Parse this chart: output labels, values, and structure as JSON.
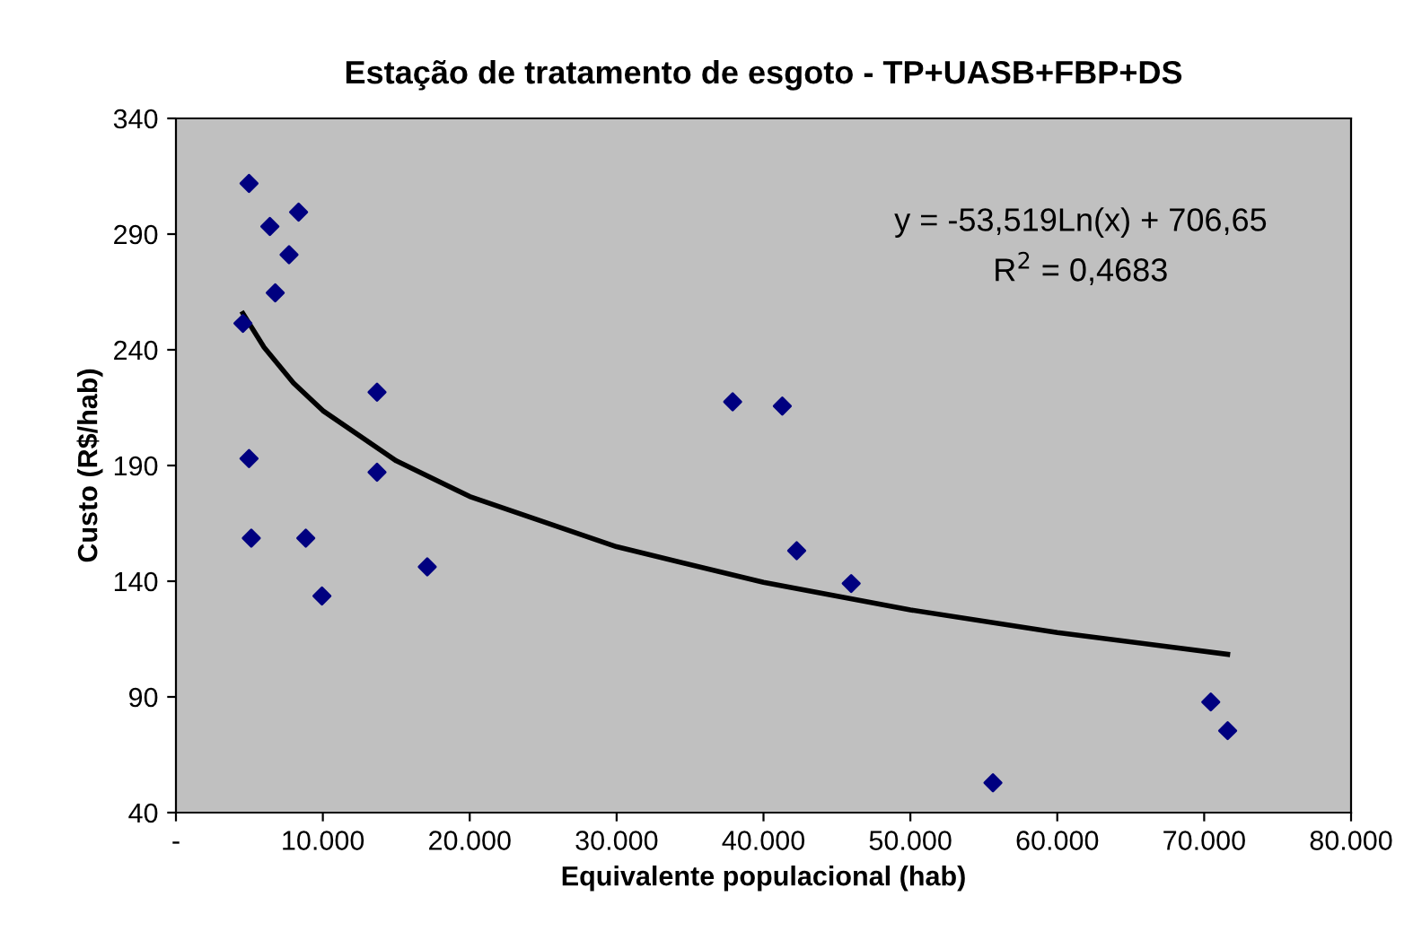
{
  "chart_data": {
    "type": "scatter",
    "title": "Estação de tratamento de esgoto - TP+UASB+FBP+DS",
    "xlabel": "Equivalente populacional (hab)",
    "ylabel": "Custo (R$/hab)",
    "x": [
      4975,
      6395,
      8350,
      7700,
      6760,
      4560,
      4975,
      5130,
      8840,
      9940,
      13690,
      13690,
      17110,
      37900,
      41280,
      42260,
      45970,
      55620,
      70450,
      71600
    ],
    "series": [
      {
        "color": "#000080",
        "marker": "diamond",
        "values": [
          311.9,
          293.3,
          299.5,
          281.1,
          264.6,
          251.4,
          193,
          158.6,
          158.6,
          133.6,
          221.7,
          187.1,
          146.2,
          217.5,
          215.7,
          153.2,
          139,
          52.9,
          87.8,
          75.4
        ]
      },
      {
        "type": "line",
        "color": "#000000",
        "marker": "none",
        "x": [
          4560,
          6000,
          8000,
          10000,
          15000,
          20000,
          30000,
          40000,
          50000,
          60000,
          71600
        ],
        "values": [
          255.7,
          241.1,
          225.7,
          213.7,
          192.0,
          176.6,
          154.9,
          139.5,
          127.6,
          117.8,
          108.4
        ]
      }
    ],
    "annotations": [
      "y = -53,519Ln(x) + 706,65",
      "R$^{2}$ = 0,4683"
    ],
    "xlim": [
      0,
      80000
    ],
    "xticks": [
      {
        "value": 0,
        "label": "-"
      },
      {
        "value": 10000,
        "label": "10.000"
      },
      {
        "value": 20000,
        "label": "20.000"
      },
      {
        "value": 30000,
        "label": "30.000"
      },
      {
        "value": 40000,
        "label": "40.000"
      },
      {
        "value": 50000,
        "label": "50.000"
      },
      {
        "value": 60000,
        "label": "60.000"
      },
      {
        "value": 70000,
        "label": "70.000"
      },
      {
        "value": 80000,
        "label": "80.000"
      }
    ],
    "ylim": [
      40,
      340
    ],
    "yticks": [
      40,
      90,
      140,
      190,
      240,
      290,
      340
    ],
    "grid": false,
    "legend": false
  }
}
